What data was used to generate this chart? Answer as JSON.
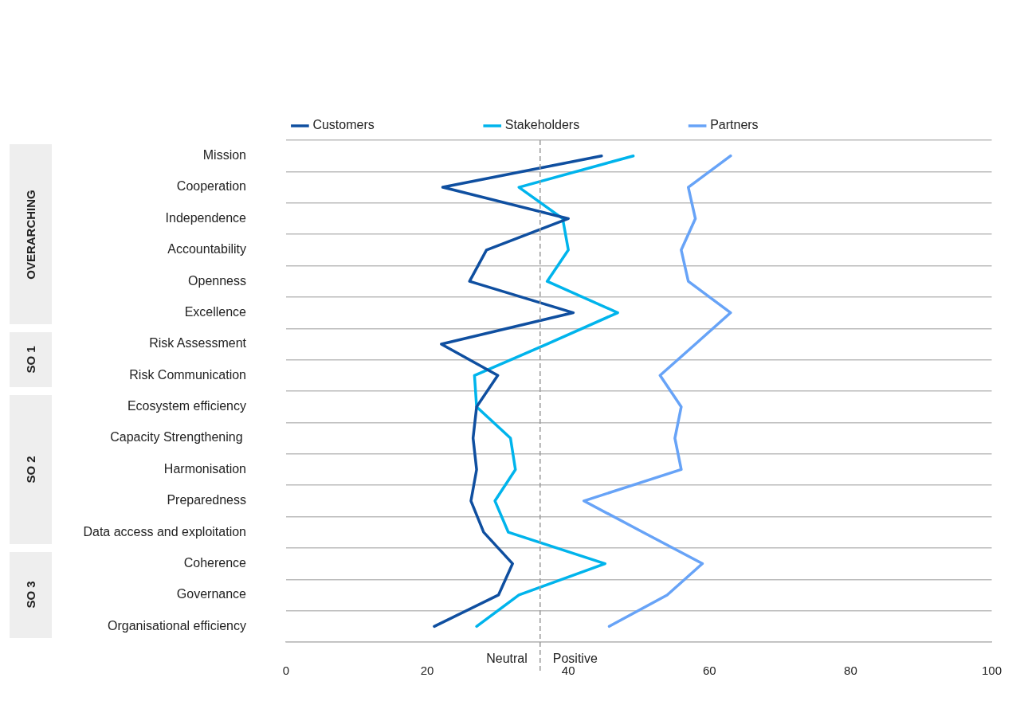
{
  "chart_data": {
    "type": "line",
    "orientation": "horizontal",
    "categories": [
      "Mission",
      "Cooperation",
      "Independence",
      "Accountability",
      "Openness",
      "Excellence",
      "Risk Assessment",
      "Risk Communication",
      "Ecosystem efficiency",
      "Capacity Strengthening ",
      "Harmonisation",
      "Preparedness",
      "Data access and exploitation",
      "Coherence",
      "Governance",
      "Organisational efficiency"
    ],
    "series": [
      {
        "name": "Customers",
        "color": "#0f4fa0",
        "values": [
          44.7,
          22.2,
          40,
          28.4,
          26,
          40.7,
          22,
          30,
          27,
          26.5,
          27,
          26.2,
          28,
          32.1,
          30.1,
          21
        ]
      },
      {
        "name": "Stakeholders",
        "color": "#00b4ec",
        "values": [
          49.2,
          33,
          39.2,
          40,
          37,
          47,
          37,
          26.7,
          27,
          31.8,
          32.5,
          29.6,
          31.5,
          45.2,
          33,
          27
        ]
      },
      {
        "name": "Partners",
        "color": "#67a3f7",
        "values": [
          63,
          57,
          58,
          56,
          57,
          63,
          58,
          53,
          56,
          55.1,
          56,
          42.2,
          50.6,
          59,
          54,
          45.8
        ]
      }
    ],
    "xlim": [
      0,
      100
    ],
    "xticks": [
      0,
      20,
      40,
      60,
      80,
      100
    ],
    "grid": "y",
    "legend": "top",
    "marker": "none",
    "line_style": "solid",
    "ref_lines": [
      {
        "axis": "x",
        "value": 36,
        "color": "#999999",
        "line_style": "dashed"
      }
    ],
    "annotations": [
      {
        "text": "Neutral",
        "x": 36
      },
      {
        "text": "Positive",
        "x": 36
      },
      "OVERARCHING",
      "SO 1",
      "SO 2",
      "SO 3"
    ]
  }
}
